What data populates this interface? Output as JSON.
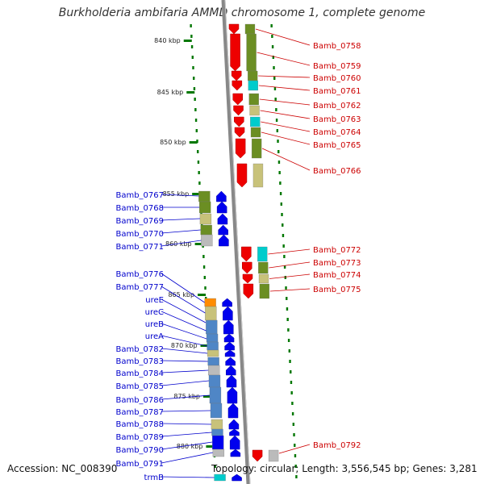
{
  "title": "Burkholderia ambifaria AMMD chromosome 1, complete genome",
  "footer": {
    "accession": "Accession: NC_008390",
    "topology": "Topology: circular; Length: 3,556,545 bp; Genes: 3,281"
  },
  "ticks": [
    "840 kbp",
    "845 kbp",
    "850 kbp",
    "855 kbp",
    "860 kbp",
    "865 kbp",
    "870 kbp",
    "875 kbp",
    "880 kbp"
  ],
  "right_genes": [
    "Bamb_0758",
    "Bamb_0759",
    "Bamb_0760",
    "Bamb_0761",
    "Bamb_0762",
    "Bamb_0763",
    "Bamb_0764",
    "Bamb_0765",
    "Bamb_0766",
    "Bamb_0772",
    "Bamb_0773",
    "Bamb_0774",
    "Bamb_0775",
    "Bamb_0792"
  ],
  "left_genes": [
    "Bamb_0767",
    "Bamb_0768",
    "Bamb_0769",
    "Bamb_0770",
    "Bamb_0771",
    "Bamb_0776",
    "Bamb_0777",
    "ureE",
    "ureC",
    "ureB",
    "ureA",
    "Bamb_0782",
    "Bamb_0783",
    "Bamb_0784",
    "Bamb_0785",
    "Bamb_0786",
    "Bamb_0787",
    "Bamb_0788",
    "Bamb_0789",
    "Bamb_0790",
    "Bamb_0791",
    "trmB"
  ],
  "colors": {
    "forward_strand": "#ee0000",
    "reverse_strand": "#0000ee",
    "cog_olive": "#6b8e23",
    "cog_khaki": "#c8c27a",
    "cog_cyan": "#00cccc",
    "cog_steelblue": "#4f86c6",
    "cog_grey": "#bbbbbb",
    "cog_orange": "#ff8c00",
    "backbone": "#888888",
    "tick": "#007700"
  }
}
